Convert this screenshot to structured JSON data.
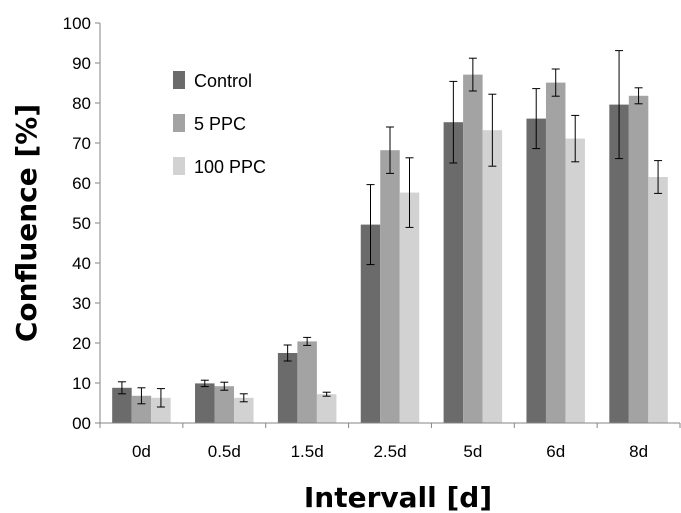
{
  "chart_data": {
    "type": "bar",
    "xlabel": "Intervall [d]",
    "ylabel": "Confluence [%]",
    "ylim": [
      0,
      100
    ],
    "yticks": [
      "00",
      "10",
      "20",
      "30",
      "40",
      "50",
      "60",
      "70",
      "80",
      "90",
      "100"
    ],
    "categories": [
      "0d",
      "0.5d",
      "1.5d",
      "2.5d",
      "5d",
      "6d",
      "8d"
    ],
    "series": [
      {
        "name": "Control",
        "color": "#6b6b6b",
        "values": [
          8.8,
          9.9,
          17.5,
          49.6,
          75.2,
          76.1,
          79.6
        ],
        "errors": [
          1.5,
          0.8,
          2.0,
          10.0,
          10.2,
          7.5,
          13.5
        ]
      },
      {
        "name": "5 PPC",
        "color": "#a3a3a3",
        "values": [
          6.8,
          9.2,
          20.4,
          68.2,
          87.1,
          85.1,
          81.8
        ],
        "errors": [
          2.0,
          1.0,
          1.0,
          5.8,
          4.1,
          3.4,
          2.0
        ]
      },
      {
        "name": "100 PPC",
        "color": "#d2d2d2",
        "values": [
          6.3,
          6.3,
          7.2,
          57.6,
          73.2,
          71.1,
          61.5
        ],
        "errors": [
          2.3,
          1.0,
          0.5,
          8.7,
          9.0,
          5.8,
          4.1
        ]
      }
    ],
    "grid": false,
    "legend_position": "top-left"
  }
}
